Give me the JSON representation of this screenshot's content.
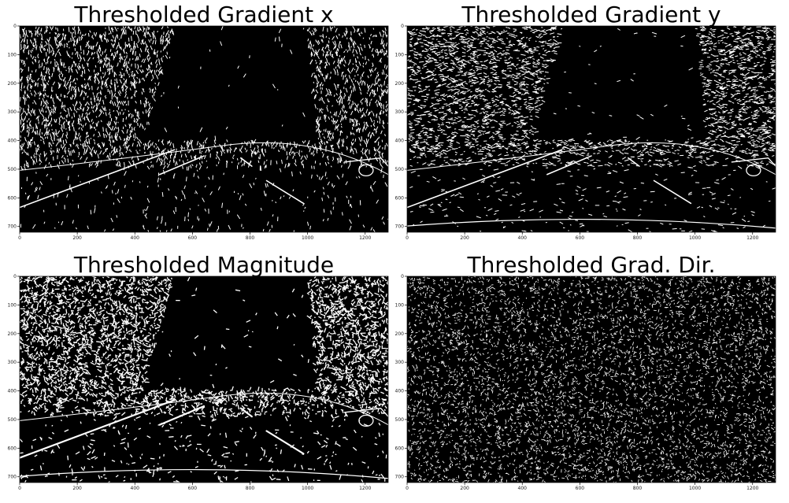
{
  "panels": [
    {
      "id": "grad-x",
      "title": "Thresholded Gradient x",
      "density": 0.07,
      "style": "gradx",
      "xticks": [
        "0",
        "200",
        "400",
        "600",
        "800",
        "1000",
        "1200"
      ],
      "yticks": [
        "0",
        "100",
        "200",
        "300",
        "400",
        "500",
        "600",
        "700"
      ]
    },
    {
      "id": "grad-y",
      "title": "Thresholded Gradient y",
      "density": 0.08,
      "style": "grady",
      "xticks": [
        "0",
        "200",
        "400",
        "600",
        "800",
        "1000",
        "1200"
      ],
      "yticks": [
        "0",
        "100",
        "200",
        "300",
        "400",
        "500",
        "600",
        "700"
      ]
    },
    {
      "id": "magnitude",
      "title": "Thresholded Magnitude",
      "density": 0.1,
      "style": "mag",
      "xticks": [
        "0",
        "200",
        "400",
        "600",
        "800",
        "1000",
        "1200"
      ],
      "yticks": [
        "0",
        "100",
        "200",
        "300",
        "400",
        "500",
        "600",
        "700"
      ]
    },
    {
      "id": "grad-dir",
      "title": "Thresholded Grad. Dir.",
      "density": 0.35,
      "style": "dir",
      "xticks": [
        "0",
        "200",
        "400",
        "600",
        "800",
        "1000",
        "1200"
      ],
      "yticks": [
        "0",
        "100",
        "200",
        "300",
        "400",
        "500",
        "600",
        "700"
      ]
    }
  ],
  "colors": {
    "background": "#000000",
    "edges": "#ffffff"
  }
}
